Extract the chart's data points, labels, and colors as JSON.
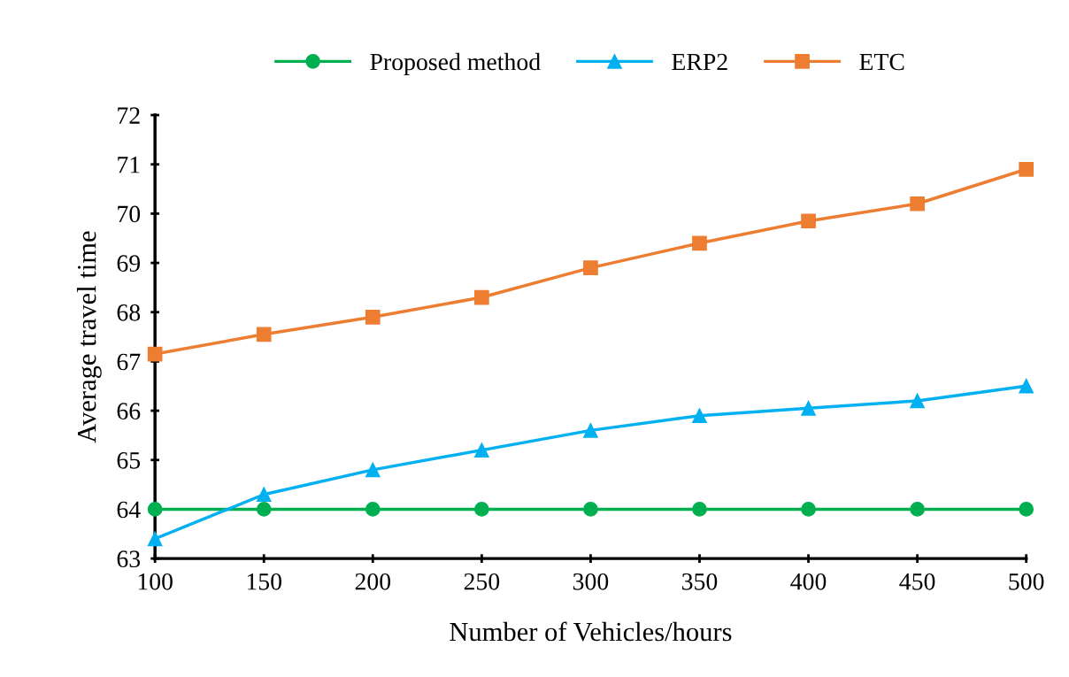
{
  "chart_data": {
    "type": "line",
    "xlabel": "Number of Vehicles/hours",
    "ylabel": "Average travel time",
    "x": [
      100,
      150,
      200,
      250,
      300,
      350,
      400,
      450,
      500
    ],
    "series": [
      {
        "name": "Proposed method",
        "color": "#00b050",
        "marker": "circle",
        "values": [
          64.0,
          64.0,
          64.0,
          64.0,
          64.0,
          64.0,
          64.0,
          64.0,
          64.0
        ]
      },
      {
        "name": "ERP2",
        "color": "#00b0f0",
        "marker": "triangle",
        "values": [
          63.4,
          64.3,
          64.8,
          65.2,
          65.6,
          65.9,
          66.05,
          66.2,
          66.5
        ]
      },
      {
        "name": "ETC",
        "color": "#ed7d31",
        "marker": "square",
        "values": [
          67.15,
          67.55,
          67.9,
          68.3,
          68.9,
          69.4,
          69.85,
          70.2,
          70.9
        ]
      }
    ],
    "xlim": [
      100,
      500
    ],
    "xticks": [
      100,
      150,
      200,
      250,
      300,
      350,
      400,
      450,
      500
    ],
    "ylim": [
      63,
      72
    ],
    "yticks": [
      63,
      64,
      65,
      66,
      67,
      68,
      69,
      70,
      71,
      72
    ],
    "grid": false,
    "legend": "top",
    "line_style": "solid"
  }
}
